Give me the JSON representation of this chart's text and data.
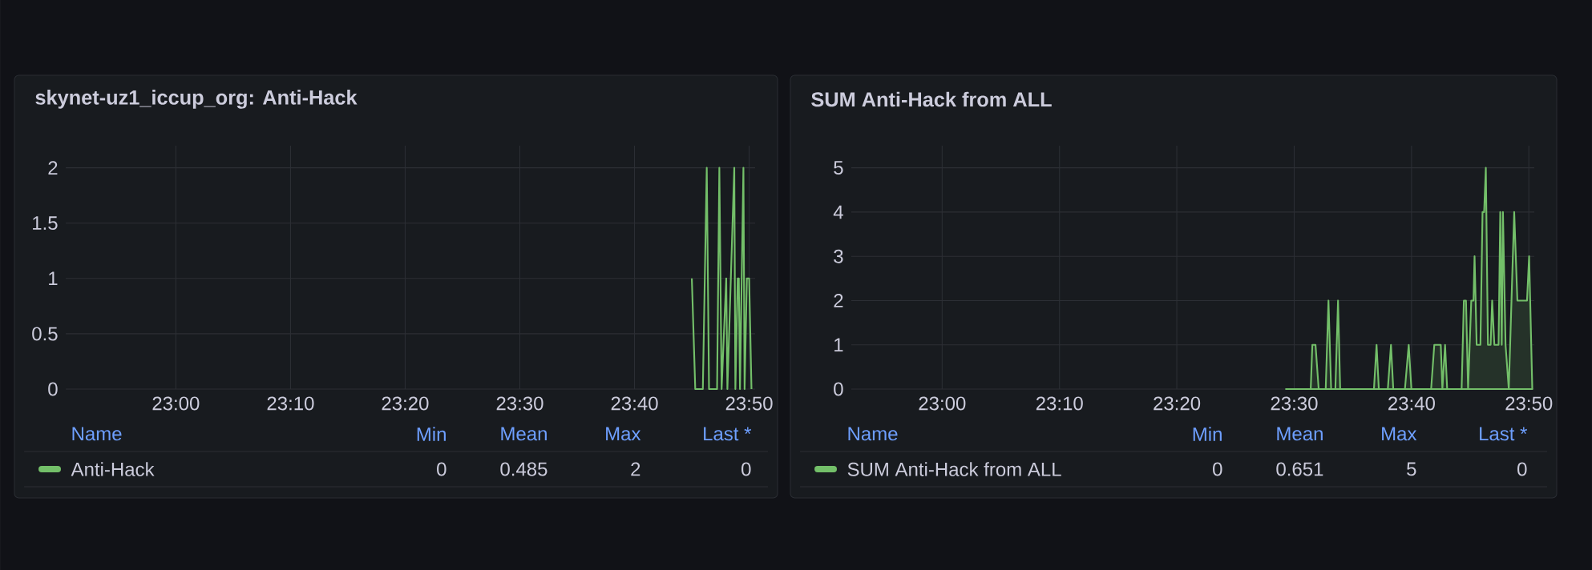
{
  "chart_data": [
    {
      "type": "line",
      "title": "skynet-uz1_iccup_org: Anti-Hack",
      "xlim": [
        22.84,
        23.842
      ],
      "xticks": [
        {
          "value": 23.0,
          "label": "23:00"
        },
        {
          "value": 23.1667,
          "label": "23:10"
        },
        {
          "value": 23.3333,
          "label": "23:20"
        },
        {
          "value": 23.5,
          "label": "23:30"
        },
        {
          "value": 23.6667,
          "label": "23:40"
        },
        {
          "value": 23.8333,
          "label": "23:50"
        }
      ],
      "ylim": [
        0,
        2.2
      ],
      "yticks": [
        0,
        0.5,
        1,
        1.5,
        2
      ],
      "grid": true,
      "legend": "bottom",
      "series": [
        {
          "name": "Anti-Hack",
          "color": "#73bf69",
          "x": [
            23.75,
            23.755,
            23.766,
            23.7717,
            23.775,
            23.7867,
            23.79,
            23.7933,
            23.8,
            23.8017,
            23.8117,
            23.8133,
            23.8167,
            23.8183,
            23.82,
            23.825,
            23.8267,
            23.83,
            23.8333,
            23.8367
          ],
          "values": [
            1,
            0,
            0,
            2,
            0,
            0,
            2,
            0,
            1,
            0,
            2,
            0,
            1,
            1,
            0,
            2,
            0,
            1,
            1,
            0
          ]
        }
      ],
      "annotations": [
        "Name",
        "Min",
        "Mean",
        "Max",
        "Last *",
        "0",
        "0.485",
        "2",
        "0"
      ]
    },
    {
      "type": "area",
      "title": "SUM Anti-Hack from ALL",
      "xlim": [
        22.871,
        23.841
      ],
      "xticks": [
        {
          "value": 23.0,
          "label": "23:00"
        },
        {
          "value": 23.1667,
          "label": "23:10"
        },
        {
          "value": 23.3333,
          "label": "23:20"
        },
        {
          "value": 23.5,
          "label": "23:30"
        },
        {
          "value": 23.6667,
          "label": "23:40"
        },
        {
          "value": 23.8333,
          "label": "23:50"
        }
      ],
      "ylim": [
        0,
        5.5
      ],
      "yticks": [
        0,
        1,
        2,
        3,
        4,
        5
      ],
      "grid": true,
      "legend": "bottom",
      "series": [
        {
          "name": "SUM Anti-Hack from ALL",
          "color": "#73bf69",
          "x": [
            23.4883,
            23.5235,
            23.5258,
            23.5303,
            23.5348,
            23.5448,
            23.5487,
            23.5525,
            23.5585,
            23.5623,
            23.5653,
            23.6133,
            23.617,
            23.6202,
            23.633,
            23.6375,
            23.6407,
            23.6573,
            23.6627,
            23.6665,
            23.6945,
            23.699,
            23.7028,
            23.7082,
            23.7105,
            23.7143,
            23.7173,
            23.7378,
            23.741,
            23.744,
            23.747,
            23.7515,
            23.7547,
            23.7562,
            23.7592,
            23.7645,
            23.7675,
            23.7698,
            23.7722,
            23.7752,
            23.779,
            23.7812,
            23.7843,
            23.7903,
            23.7927,
            23.7948,
            23.7965,
            23.8002,
            23.8048,
            23.8125,
            23.817,
            23.8307,
            23.8337,
            23.8382
          ],
          "values": [
            0,
            0,
            1,
            1,
            0,
            0,
            2,
            0,
            0,
            2,
            0,
            0,
            1,
            0,
            0,
            1,
            0,
            0,
            1,
            0,
            0,
            1,
            1,
            1,
            0,
            1,
            0,
            0,
            2,
            2,
            0,
            2,
            2,
            3,
            1,
            1,
            4,
            4,
            5,
            1,
            1,
            2,
            1,
            1,
            4,
            1,
            4,
            1,
            0,
            4,
            2,
            2,
            3,
            0
          ]
        }
      ],
      "annotations": [
        "Name",
        "Min",
        "Mean",
        "Max",
        "Last *",
        "0",
        "0.651",
        "5",
        "0"
      ]
    }
  ]
}
